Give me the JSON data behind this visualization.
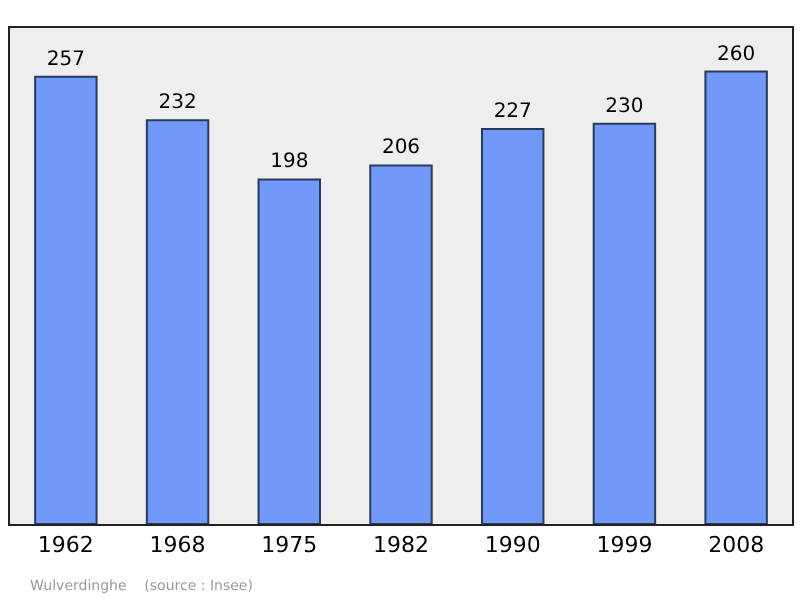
{
  "chart_data": {
    "type": "bar",
    "categories": [
      "1962",
      "1968",
      "1975",
      "1982",
      "1990",
      "1999",
      "2008"
    ],
    "values": [
      257,
      232,
      198,
      206,
      227,
      230,
      260
    ],
    "color": "#7099fa",
    "data_labels": true,
    "ylim": [
      0,
      285
    ],
    "tick_labels": "x",
    "grid": false,
    "legend": false,
    "annotations": [
      "Wulverdinghe    (source : Insee)"
    ]
  }
}
